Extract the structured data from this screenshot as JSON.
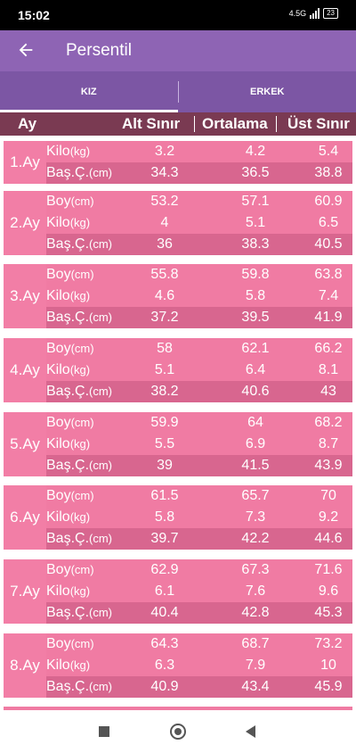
{
  "status": {
    "time": "15:02",
    "network": "4.5G",
    "battery": "23"
  },
  "app_bar": {
    "title": "Persentil"
  },
  "tabs": [
    {
      "label": "KIZ"
    },
    {
      "label": "ERKEK"
    }
  ],
  "header": {
    "ay": "Ay",
    "alt": "Alt Sınır",
    "ortalama": "Ortalama",
    "ust": "Üst Sınır"
  },
  "labels": {
    "boy": "Boy",
    "boy_unit": "(cm)",
    "kilo": "Kilo",
    "kilo_unit": "(kg)",
    "bas": "Baş.Ç.",
    "bas_unit": "(cm)"
  },
  "months": [
    {
      "name": "1.Ay",
      "kilo": [
        "3.2",
        "4.2",
        "5.4"
      ],
      "bas": [
        "34.3",
        "36.5",
        "38.8"
      ]
    },
    {
      "name": "2.Ay",
      "boy": [
        "53.2",
        "57.1",
        "60.9"
      ],
      "kilo": [
        "4",
        "5.1",
        "6.5"
      ],
      "bas": [
        "36",
        "38.3",
        "40.5"
      ]
    },
    {
      "name": "3.Ay",
      "boy": [
        "55.8",
        "59.8",
        "63.8"
      ],
      "kilo": [
        "4.6",
        "5.8",
        "7.4"
      ],
      "bas": [
        "37.2",
        "39.5",
        "41.9"
      ]
    },
    {
      "name": "4.Ay",
      "boy": [
        "58",
        "62.1",
        "66.2"
      ],
      "kilo": [
        "5.1",
        "6.4",
        "8.1"
      ],
      "bas": [
        "38.2",
        "40.6",
        "43"
      ]
    },
    {
      "name": "5.Ay",
      "boy": [
        "59.9",
        "64",
        "68.2"
      ],
      "kilo": [
        "5.5",
        "6.9",
        "8.7"
      ],
      "bas": [
        "39",
        "41.5",
        "43.9"
      ]
    },
    {
      "name": "6.Ay",
      "boy": [
        "61.5",
        "65.7",
        "70"
      ],
      "kilo": [
        "5.8",
        "7.3",
        "9.2"
      ],
      "bas": [
        "39.7",
        "42.2",
        "44.6"
      ]
    },
    {
      "name": "7.Ay",
      "boy": [
        "62.9",
        "67.3",
        "71.6"
      ],
      "kilo": [
        "6.1",
        "7.6",
        "9.6"
      ],
      "bas": [
        "40.4",
        "42.8",
        "45.3"
      ]
    },
    {
      "name": "8.Ay",
      "boy": [
        "64.3",
        "68.7",
        "73.2"
      ],
      "kilo": [
        "6.3",
        "7.9",
        "10"
      ],
      "bas": [
        "40.9",
        "43.4",
        "45.9"
      ]
    }
  ]
}
